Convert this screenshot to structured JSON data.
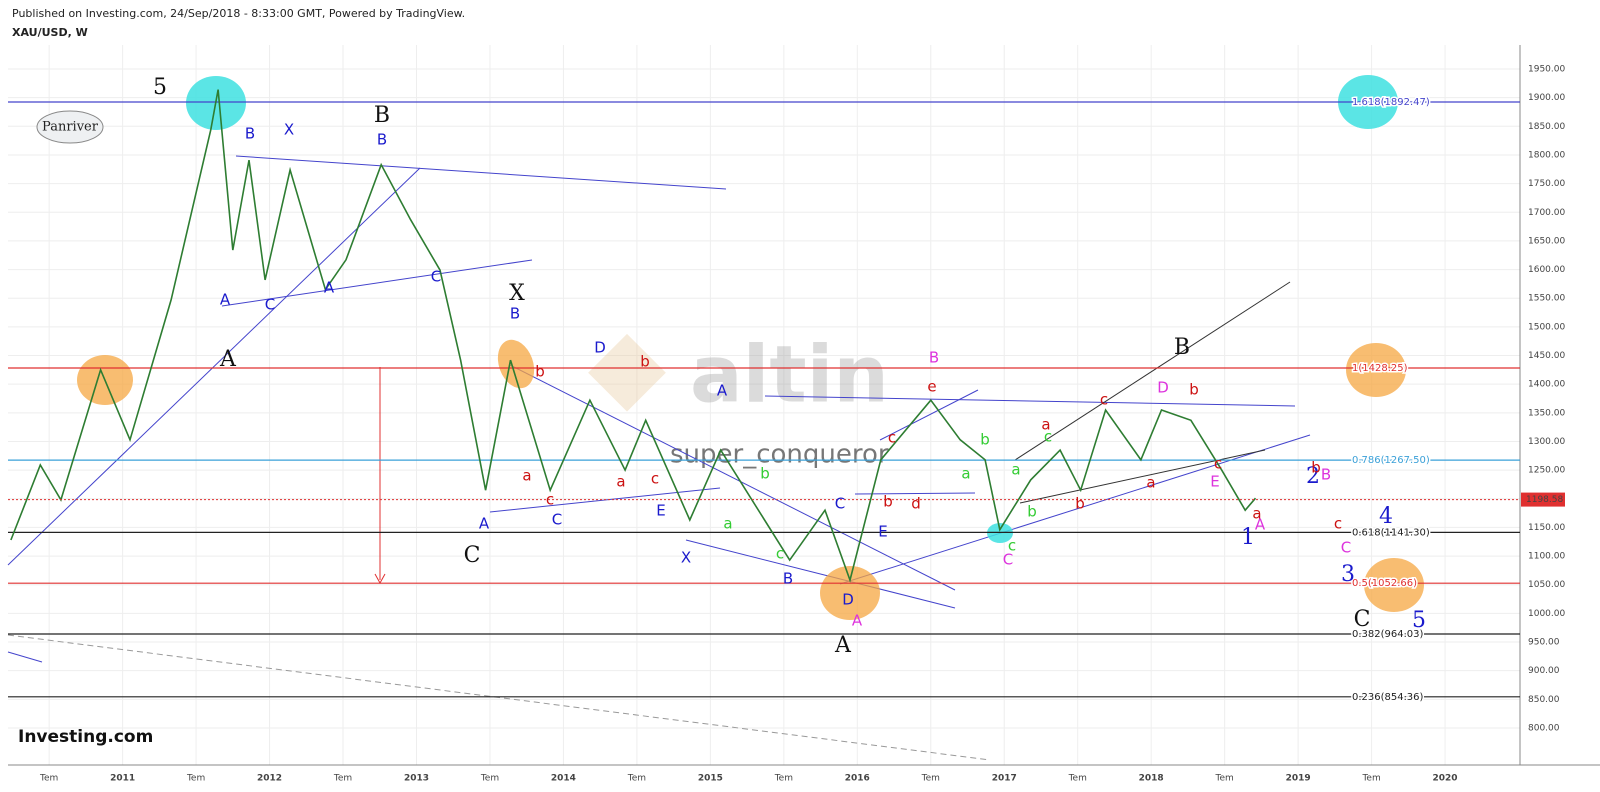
{
  "header": {
    "published": "Published on Investing.com, 24/Sep/2018 - 8:33:00 GMT, Powered by TradingView.",
    "symbol": "XAU/USD, W"
  },
  "badge": "Panriver",
  "watermark": {
    "brand": "altin",
    "author": "super_conqueror"
  },
  "footer": {
    "logo": "Investing.com"
  },
  "chart_data": {
    "type": "line",
    "xlim": [
      2010.22,
      2020.51
    ],
    "ylim": [
      735.4,
      1991.9
    ],
    "xticks": [
      {
        "value": 2010.5,
        "label": "Tem"
      },
      2011,
      {
        "value": 2011.5,
        "label": "Tem"
      },
      2012,
      {
        "value": 2012.5,
        "label": "Tem"
      },
      2013,
      {
        "value": 2013.5,
        "label": "Tem"
      },
      2014,
      {
        "value": 2014.5,
        "label": "Tem"
      },
      2015,
      {
        "value": 2015.5,
        "label": "Tem"
      },
      2016,
      {
        "value": 2016.5,
        "label": "Tem"
      },
      2017,
      {
        "value": 2017.5,
        "label": "Tem"
      },
      2018,
      {
        "value": 2018.5,
        "label": "Tem"
      },
      2019,
      {
        "value": 2019.5,
        "label": "Tem"
      },
      2020
    ],
    "yticks": [
      {
        "value": 800,
        "label": "800.00"
      },
      {
        "value": 850,
        "label": "850.00"
      },
      {
        "value": 900,
        "label": "900.00"
      },
      {
        "value": 950,
        "label": "950.00"
      },
      {
        "value": 1000,
        "label": "1000.00"
      },
      {
        "value": 1050,
        "label": "1050.00"
      },
      {
        "value": 1100,
        "label": "1100.00"
      },
      {
        "value": 1150,
        "label": "1150.00"
      },
      {
        "value": 1200,
        "label": "1200.00"
      },
      {
        "value": 1250,
        "label": "1250.00"
      },
      {
        "value": 1300,
        "label": "1300.00"
      },
      {
        "value": 1350,
        "label": "1350.00"
      },
      {
        "value": 1400,
        "label": "1400.00"
      },
      {
        "value": 1450,
        "label": "1450.00"
      },
      {
        "value": 1500,
        "label": "1500.00"
      },
      {
        "value": 1550,
        "label": "1550.00"
      },
      {
        "value": 1600,
        "label": "1600.00"
      },
      {
        "value": 1650,
        "label": "1650.00"
      },
      {
        "value": 1700,
        "label": "1700.00"
      },
      {
        "value": 1750,
        "label": "1750.00"
      },
      {
        "value": 1800,
        "label": "1800.00"
      },
      {
        "value": 1850,
        "label": "1850.00"
      },
      {
        "value": 1900,
        "label": "1900.00"
      },
      {
        "value": 1950,
        "label": "1950.00"
      }
    ],
    "series": [
      {
        "name": "XAU/USD",
        "color": "#2e7d32",
        "x": [
          2010.24,
          2010.44,
          2010.58,
          2010.85,
          2011.05,
          2011.33,
          2011.6,
          2011.65,
          2011.75,
          2011.86,
          2011.97,
          2012.14,
          2012.38,
          2012.52,
          2012.76,
          2012.96,
          2013.16,
          2013.3,
          2013.47,
          2013.64,
          2013.91,
          2014.18,
          2014.42,
          2014.56,
          2014.86,
          2015.07,
          2015.54,
          2015.78,
          2015.95,
          2016.16,
          2016.5,
          2016.7,
          2016.87,
          2016.97,
          2017.18,
          2017.38,
          2017.52,
          2017.69,
          2017.93,
          2018.07,
          2018.27,
          2018.48,
          2018.64,
          2018.71
        ],
        "values": [
          1128,
          1259,
          1198,
          1425,
          1303,
          1547,
          1844,
          1914,
          1634,
          1791,
          1582,
          1774,
          1565,
          1617,
          1783,
          1687,
          1599,
          1442,
          1215,
          1442,
          1215,
          1372,
          1250,
          1337,
          1163,
          1285,
          1093,
          1180,
          1058,
          1268,
          1372,
          1303,
          1268,
          1146,
          1233,
          1285,
          1215,
          1355,
          1268,
          1355,
          1337,
          1250,
          1180,
          1201
        ]
      }
    ],
    "last_price": 1198.58,
    "last_price_color": "#e03030",
    "levels": [
      {
        "label": "1.618(1892.47)",
        "value": 1892.47,
        "color": "#4444cc"
      },
      {
        "label": "1(1428.25)",
        "value": 1428.25,
        "color": "#e03030"
      },
      {
        "label": "0.786(1267.50)",
        "value": 1267.5,
        "color": "#3aa0d8"
      },
      {
        "label": "0.618(1141.30)",
        "value": 1141.3,
        "color": "#222222"
      },
      {
        "label": "0.5(1052.66)",
        "value": 1052.66,
        "color": "#e03030"
      },
      {
        "label": "0.382(964.03)",
        "value": 964.03,
        "color": "#222222"
      },
      {
        "label": "0.236(854.36)",
        "value": 854.36,
        "color": "#222222"
      }
    ],
    "annotations": [
      {
        "text": "5",
        "color": "#111"
      },
      {
        "text": "B",
        "color": "#1a1acc"
      },
      {
        "text": "X",
        "color": "#1a1acc"
      },
      {
        "text": "B",
        "color": "#111"
      },
      {
        "text": "B",
        "color": "#1a1acc"
      },
      {
        "text": "A",
        "color": "#1a1acc"
      },
      {
        "text": "C",
        "color": "#1a1acc"
      },
      {
        "text": "A",
        "color": "#1a1acc"
      },
      {
        "text": "C",
        "color": "#1a1acc"
      },
      {
        "text": "A",
        "color": "#111"
      },
      {
        "text": "X",
        "color": "#111"
      },
      {
        "text": "B",
        "color": "#1a1acc"
      },
      {
        "text": "D",
        "color": "#1a1acc"
      },
      {
        "text": "b",
        "color": "#cc1111"
      },
      {
        "text": "b",
        "color": "#cc1111"
      },
      {
        "text": "a",
        "color": "#cc1111"
      },
      {
        "text": "c",
        "color": "#cc1111"
      },
      {
        "text": "a",
        "color": "#cc1111"
      },
      {
        "text": "c",
        "color": "#cc1111"
      },
      {
        "text": "A",
        "color": "#1a1acc"
      },
      {
        "text": "C",
        "color": "#1a1acc"
      },
      {
        "text": "E",
        "color": "#1a1acc"
      },
      {
        "text": "C",
        "color": "#111"
      },
      {
        "text": "X",
        "color": "#1a1acc"
      },
      {
        "text": "A",
        "color": "#1a1acc"
      },
      {
        "text": "b",
        "color": "#33cc33"
      },
      {
        "text": "a",
        "color": "#33cc33"
      },
      {
        "text": "c",
        "color": "#33cc33"
      },
      {
        "text": "B",
        "color": "#1a1acc"
      },
      {
        "text": "C",
        "color": "#1a1acc"
      },
      {
        "text": "E",
        "color": "#1a1acc"
      },
      {
        "text": "D",
        "color": "#1a1acc"
      },
      {
        "text": "A",
        "color": "#dd33dd"
      },
      {
        "text": "A",
        "color": "#111"
      },
      {
        "text": "B",
        "color": "#dd33dd"
      },
      {
        "text": "e",
        "color": "#cc1111"
      },
      {
        "text": "c",
        "color": "#cc1111"
      },
      {
        "text": "b",
        "color": "#cc1111"
      },
      {
        "text": "d",
        "color": "#cc1111"
      },
      {
        "text": "a",
        "color": "#33cc33"
      },
      {
        "text": "b",
        "color": "#33cc33"
      },
      {
        "text": "a",
        "color": "#cc1111"
      },
      {
        "text": "c",
        "color": "#33cc33"
      },
      {
        "text": "a",
        "color": "#33cc33"
      },
      {
        "text": "b",
        "color": "#33cc33"
      },
      {
        "text": "c",
        "color": "#33cc33"
      },
      {
        "text": "C",
        "color": "#dd33dd"
      },
      {
        "text": "b",
        "color": "#cc1111"
      },
      {
        "text": "c",
        "color": "#cc1111"
      },
      {
        "text": "D",
        "color": "#dd33dd"
      },
      {
        "text": "b",
        "color": "#cc1111"
      },
      {
        "text": "a",
        "color": "#cc1111"
      },
      {
        "text": "B",
        "color": "#111"
      },
      {
        "text": "c",
        "color": "#cc1111"
      },
      {
        "text": "E",
        "color": "#dd33dd"
      },
      {
        "text": "a",
        "color": "#cc1111"
      },
      {
        "text": "A",
        "color": "#dd33dd"
      },
      {
        "text": "1",
        "color": "#1a1acc"
      },
      {
        "text": "2",
        "color": "#1a1acc"
      },
      {
        "text": "B",
        "color": "#dd33dd"
      },
      {
        "text": "b",
        "color": "#cc1111"
      },
      {
        "text": "4",
        "color": "#1a1acc"
      },
      {
        "text": "c",
        "color": "#cc1111"
      },
      {
        "text": "C",
        "color": "#dd33dd"
      },
      {
        "text": "3",
        "color": "#1a1acc"
      },
      {
        "text": "C",
        "color": "#111"
      },
      {
        "text": "5",
        "color": "#1a1acc"
      }
    ]
  }
}
